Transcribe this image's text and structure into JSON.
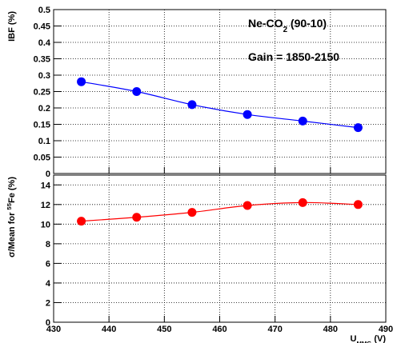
{
  "chart_data": [
    {
      "type": "line",
      "ylabel": "IBF (%)",
      "annotations": [
        [
          "Ne-CO",
          "2",
          " (90-10)"
        ],
        [
          "Gain = 1850-2150"
        ]
      ],
      "x": [
        435,
        445,
        455,
        465,
        475,
        485
      ],
      "series": [
        {
          "color": "#0000ff",
          "values": [
            0.28,
            0.25,
            0.21,
            0.18,
            0.16,
            0.14
          ]
        }
      ],
      "xlim": [
        430,
        490
      ],
      "xticks": [
        430,
        440,
        450,
        460,
        470,
        480,
        490
      ],
      "ylim": [
        0,
        0.5
      ],
      "yticks": [
        0,
        0.05,
        0.1,
        0.15,
        0.2,
        0.25,
        0.3,
        0.35,
        0.4,
        0.45,
        0.5
      ],
      "grid": true
    },
    {
      "type": "line",
      "ylabel": [
        "σ/Mean for ",
        "55",
        "Fe (%)"
      ],
      "xlabel": [
        "U",
        "MMG",
        " (V)"
      ],
      "x": [
        435,
        445,
        455,
        465,
        475,
        485
      ],
      "series": [
        {
          "color": "#ff0000",
          "values": [
            10.3,
            10.7,
            11.2,
            11.9,
            12.2,
            12.0
          ]
        }
      ],
      "xlim": [
        430,
        490
      ],
      "xticks": [
        430,
        440,
        450,
        460,
        470,
        480,
        490
      ],
      "ylim": [
        0,
        15
      ],
      "yticks": [
        0,
        2,
        4,
        6,
        8,
        10,
        12,
        14
      ],
      "grid": true
    }
  ]
}
